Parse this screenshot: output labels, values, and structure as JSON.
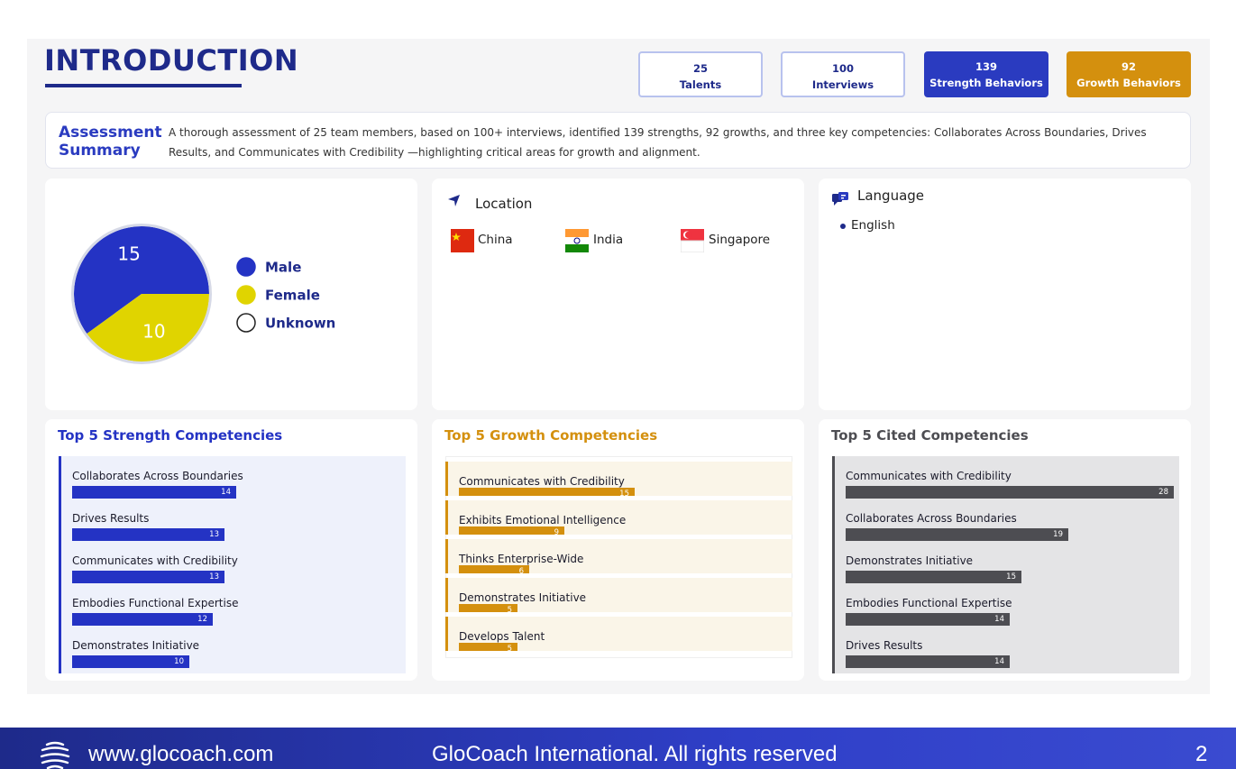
{
  "header": {
    "title": "INTRODUCTION"
  },
  "stats": [
    {
      "value": 25,
      "label": "Talents"
    },
    {
      "value": 100,
      "label": "Interviews"
    },
    {
      "value": 139,
      "label": "Strength Behaviors"
    },
    {
      "value": 92,
      "label": "Growth Behaviors"
    }
  ],
  "summary": {
    "title": "Assessment Summary",
    "text": "A thorough assessment of 25 team members, based on 100+ interviews, identified 139 strengths, 92 growths, and three key competencies: Collaborates Across Boundaries, Drives Results, and Communicates with Credibility —highlighting critical areas for growth and alignment."
  },
  "location": {
    "title": "Location",
    "countries": [
      "China",
      "India",
      "Singapore"
    ]
  },
  "language": {
    "title": "Language",
    "items": [
      "English"
    ]
  },
  "chart_data": [
    {
      "type": "pie",
      "categories": [
        "Male",
        "Female",
        "Unknown"
      ],
      "values": [
        15,
        10,
        0
      ],
      "colors": [
        "#2433c4",
        "#e0d400",
        "#ffffff"
      ]
    },
    {
      "type": "bar",
      "title": "Top 5 Strength Competencies",
      "categories": [
        "Collaborates Across Boundaries",
        "Drives Results",
        "Communicates with Credibility",
        "Embodies Functional Expertise",
        "Demonstrates Initiative"
      ],
      "values": [
        14,
        13,
        13,
        12,
        10
      ],
      "color": "#2433c4"
    },
    {
      "type": "bar",
      "title": "Top 5 Growth Competencies",
      "categories": [
        "Communicates with Credibility",
        "Exhibits Emotional Intelligence",
        "Thinks Enterprise-Wide",
        "Demonstrates Initiative",
        "Develops Talent"
      ],
      "values": [
        15,
        9,
        6,
        5,
        5
      ],
      "color": "#d4900e"
    },
    {
      "type": "bar",
      "title": "Top 5 Cited Competencies",
      "categories": [
        "Communicates with Credibility",
        "Collaborates Across Boundaries",
        "Demonstrates Initiative",
        "Embodies Functional Expertise",
        "Drives Results"
      ],
      "values": [
        28,
        19,
        15,
        14,
        14
      ],
      "color": "#4d4d52"
    }
  ],
  "footer": {
    "website": "www.glocoach.com",
    "copyright": "GloCoach International. All rights reserved",
    "page": 2
  }
}
